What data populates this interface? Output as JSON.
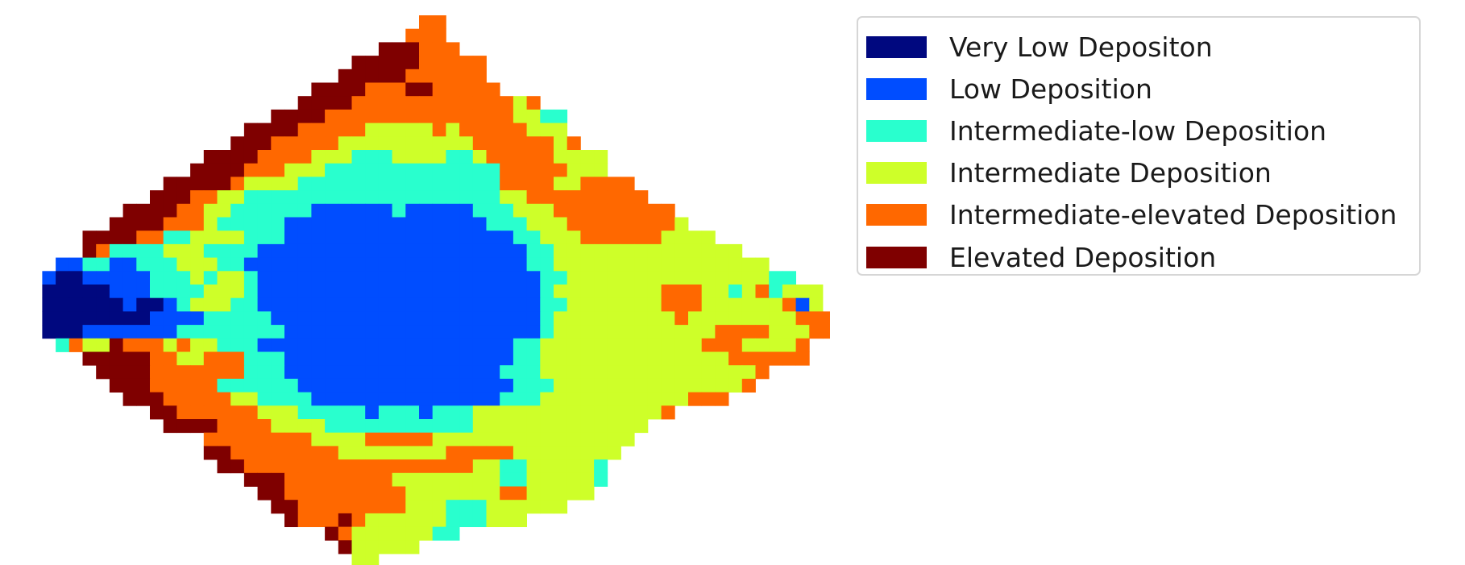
{
  "chart_data": {
    "type": "heatmap",
    "title": "",
    "grid_rows": 41,
    "grid_cols": 61,
    "axes_visible": false,
    "legend_position": "right",
    "levels": [
      {
        "id": 0,
        "label": "Very Low Depositon",
        "color": "#00087f"
      },
      {
        "id": 1,
        "label": "Low Deposition",
        "color": "#004dff"
      },
      {
        "id": 2,
        "label": "Intermediate-low Deposition",
        "color": "#29ffce"
      },
      {
        "id": 3,
        "label": "Intermediate Deposition",
        "color": "#ceff29"
      },
      {
        "id": 4,
        "label": "Intermediate-elevated Deposition",
        "color": "#ff6800"
      },
      {
        "id": 5,
        "label": "Elevated Deposition",
        "color": "#7f0000"
      }
    ],
    "rows": [
      "..............................44.............................",
      ".............................444.............................",
      "...........................555444............................",
      ".........................5555544444..........................",
      "........................55555444444..........................",
      "......................55554445544444.........................",
      ".....................555544444444444434.......................",
      "...................5555444444444444443322.....................",
      ".................555544444333334344444333.....................",
      "................55544444333333333344444434....................",
      "..............555544443332223333223444443333..................",
      ".............5555444333222222222222244444333..................",
      "...........55555433332222222222222224444334444................",
      "..........5554433222222222222222222233444444444...............",
      "........55554433222222111111211111222333444444444.............",
      ".......5555444322222111111111111111222333444444443.............",
      ".....55554422333322211111111111111111223334444443333..........",
      ".....5422223332222111111111111111111112233333333333333........",
      "...11221122233322111111111111111111111223333333333333333......",
      "..10011111222323321111111111111111111112233333333333333322....",
      "..0000011122223332111111111111111111111233333333444332342333...",
      "..0000001001233322111111111111111111111223333333444333333413...",
      "..00000000111122222111111111111111111112333333333433333333444..",
      "..000111111122222222111111111111111111123333333333334444333444..",
      "...24335444343322211111111111111111112233333333333344433334....",
      ".....555554433444222111111111111111112233333333333333444444....",
      "......55554444444222111111111111111122233333333333333334.......",
      ".......555444442222221111111111111111222333333333333334........",
      "........555444443322221111111111111122233333333333444..........",
      "..........554444443332222212221222333333333333334..............",
      "...........555544443333222222222223333333333333................",
      "..............44444444333344444333333333333333................",
      "..............5544444444333333334444433333333.................",
      "...............55444444444444444443322333332..................",
      ".................555444444443333333322333332..................",
      "..................5544444444433333334433333...................",
      "...................5544444444333222333333.....................",
      "....................544454333333222333........................",
      ".......................5433333322...........................",
      "........................533333..............................",
      ".........................33................................."
    ]
  },
  "legend": {
    "items": [
      {
        "label": "Very Low Depositon",
        "color": "#00087f"
      },
      {
        "label": "Low Deposition",
        "color": "#004dff"
      },
      {
        "label": "Intermediate-low Deposition",
        "color": "#29ffce"
      },
      {
        "label": "Intermediate Deposition",
        "color": "#ceff29"
      },
      {
        "label": "Intermediate-elevated Deposition",
        "color": "#ff6800"
      },
      {
        "label": "Elevated Deposition",
        "color": "#7f0000"
      }
    ]
  }
}
